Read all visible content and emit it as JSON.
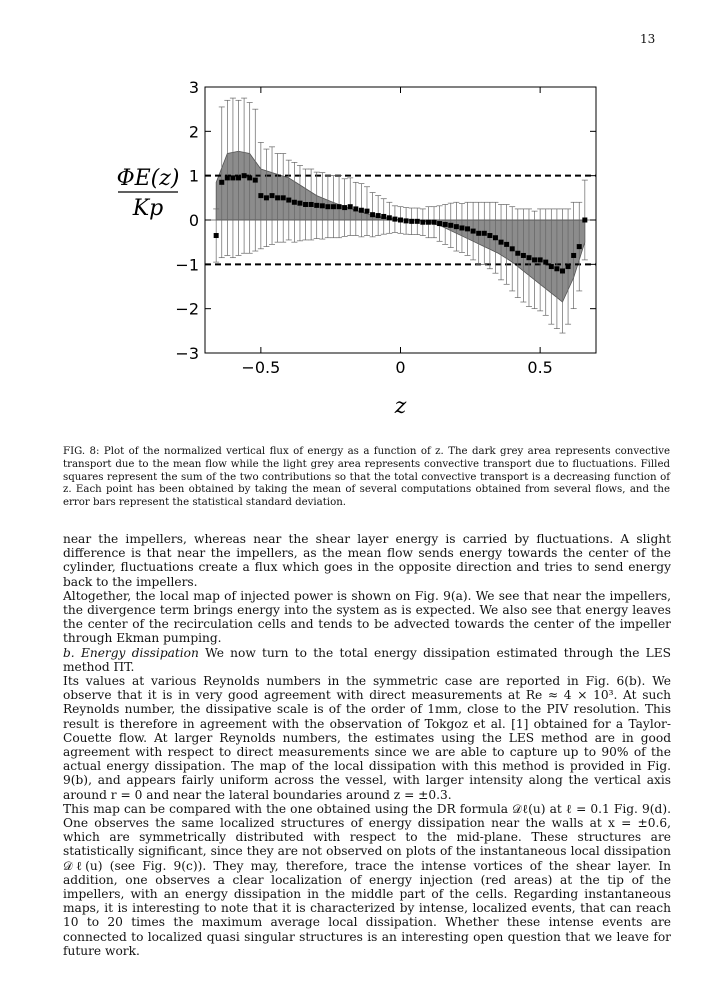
{
  "page_number": "13",
  "figure": {
    "ylabel_top": "ΦE(z)",
    "ylabel_bottom": "Kp",
    "xlabel": "z"
  },
  "caption": "FIG. 8: Plot of the normalized vertical flux of energy as a function of z. The dark grey area represents convective transport due to the mean flow while the light grey area represents convective transport due to fluctuations. Filled squares represent the sum of the two contributions so that the total convective transport is a decreasing function of z. Each point has been obtained by taking the mean of several computations obtained from several flows, and the error bars represent the statistical standard deviation.",
  "paragraphs": [
    "near the impellers, whereas near the shear layer energy is carried by fluctuations. A slight difference is that near the impellers, as the mean flow sends energy towards the center of the cylinder, fluctuations create a flux which goes in the opposite direction and tries to send energy back to the impellers.",
    "Altogether, the local map of injected power is shown on Fig. 9(a). We see that near the impellers, the divergence term brings energy into the system as is expected. We also see that energy leaves the center of the recirculation cells and tends to be advected towards the center of the impeller through Ekman pumping."
  ],
  "section": {
    "label": "b.",
    "title": "Energy dissipation",
    "text": "We now turn to the total energy dissipation estimated through the LES method ΠT."
  },
  "paragraphs2": [
    "Its values at various Reynolds numbers in the symmetric case are reported in Fig. 6(b). We observe that it is in very good agreement with direct measurements at Re ≈ 4 × 10³. At such Reynolds number, the dissipative scale is of the order of 1mm, close to the PIV resolution. This result is therefore in agreement with the observation of Tokgoz et al. [1] obtained for a Taylor-Couette flow. At larger Reynolds numbers, the estimates using the LES method are in good agreement with respect to direct measurements since we are able to capture up to 90% of the actual energy dissipation. The map of the local dissipation with this method is provided in Fig. 9(b), and appears fairly uniform across the vessel, with larger intensity along the vertical axis around r = 0 and near the lateral boundaries around z = ±0.3.",
    "This map can be compared with the one obtained using the DR formula 𝒟ℓ(u) at ℓ = 0.1 Fig. 9(d). One observes the same localized structures of energy dissipation near the walls at x = ±0.6, which are symmetrically distributed with respect to the mid-plane. These structures are statistically significant, since they are not observed on plots of the instantaneous local dissipation 𝒟ℓ(u) (see Fig. 9(c)). They may, therefore, trace the intense vortices of the shear layer. In addition, one observes a clear localization of energy injection (red areas) at the tip of the impellers, with an energy dissipation in the middle part of the cells. Regarding instantaneous maps, it is interesting to note that it is characterized by intense, localized events, that can reach 10 to 20 times the maximum average local dissipation. Whether these intense events are connected to localized quasi singular structures is an interesting open question that we leave for future work."
  ],
  "chart_data": {
    "type": "scatter",
    "xlabel": "z",
    "ylabel": "ΦE(z) / Kp",
    "xlim": [
      -0.7,
      0.7
    ],
    "ylim": [
      -3,
      3
    ],
    "xticks": [
      "−0.5",
      "0",
      "0.5"
    ],
    "xtick_values": [
      -0.5,
      0,
      0.5
    ],
    "yticks": [
      "−3",
      "−2",
      "−1",
      "0",
      "1",
      "2",
      "3"
    ],
    "ytick_values": [
      -3,
      -2,
      -1,
      0,
      1,
      2,
      3
    ],
    "reference_lines": [
      1,
      -1
    ],
    "mean_flow_area": {
      "x": [
        -0.66,
        -0.62,
        -0.58,
        -0.54,
        -0.5,
        -0.45,
        -0.4,
        -0.35,
        -0.3,
        -0.25,
        -0.2,
        -0.15,
        -0.1,
        -0.05,
        0.0,
        0.05,
        0.1,
        0.15,
        0.2,
        0.25,
        0.3,
        0.35,
        0.4,
        0.45,
        0.5,
        0.55,
        0.58,
        0.62,
        0.66
      ],
      "y": [
        0.85,
        1.5,
        1.55,
        1.5,
        1.15,
        1.05,
        0.95,
        0.75,
        0.55,
        0.42,
        0.3,
        0.2,
        0.1,
        0.05,
        0.0,
        0.0,
        -0.05,
        -0.15,
        -0.3,
        -0.45,
        -0.6,
        -0.75,
        -0.95,
        -1.2,
        -1.45,
        -1.7,
        -1.85,
        -1.3,
        -0.5
      ]
    },
    "total": {
      "x": [
        -0.66,
        -0.64,
        -0.62,
        -0.6,
        -0.58,
        -0.56,
        -0.54,
        -0.52,
        -0.5,
        -0.48,
        -0.46,
        -0.44,
        -0.42,
        -0.4,
        -0.38,
        -0.36,
        -0.34,
        -0.32,
        -0.3,
        -0.28,
        -0.26,
        -0.24,
        -0.22,
        -0.2,
        -0.18,
        -0.16,
        -0.14,
        -0.12,
        -0.1,
        -0.08,
        -0.06,
        -0.04,
        -0.02,
        0.0,
        0.02,
        0.04,
        0.06,
        0.08,
        0.1,
        0.12,
        0.14,
        0.16,
        0.18,
        0.2,
        0.22,
        0.24,
        0.26,
        0.28,
        0.3,
        0.32,
        0.34,
        0.36,
        0.38,
        0.4,
        0.42,
        0.44,
        0.46,
        0.48,
        0.5,
        0.52,
        0.54,
        0.56,
        0.58,
        0.6,
        0.62,
        0.64,
        0.66
      ],
      "y": [
        -0.35,
        0.85,
        0.95,
        0.95,
        0.95,
        1.0,
        0.95,
        0.9,
        0.55,
        0.5,
        0.55,
        0.5,
        0.5,
        0.45,
        0.4,
        0.38,
        0.35,
        0.35,
        0.33,
        0.32,
        0.3,
        0.3,
        0.3,
        0.28,
        0.3,
        0.25,
        0.22,
        0.2,
        0.12,
        0.1,
        0.08,
        0.05,
        0.02,
        0.0,
        -0.02,
        -0.03,
        -0.03,
        -0.05,
        -0.05,
        -0.05,
        -0.08,
        -0.1,
        -0.12,
        -0.15,
        -0.18,
        -0.2,
        -0.25,
        -0.3,
        -0.3,
        -0.35,
        -0.4,
        -0.5,
        -0.55,
        -0.65,
        -0.75,
        -0.8,
        -0.85,
        -0.9,
        -0.9,
        -0.95,
        -1.05,
        -1.1,
        -1.15,
        -1.05,
        -0.8,
        -0.6,
        0.0
      ],
      "error": [
        0.6,
        1.7,
        1.75,
        1.8,
        1.75,
        1.75,
        1.7,
        1.6,
        1.2,
        1.1,
        1.1,
        1.0,
        1.0,
        0.9,
        0.9,
        0.85,
        0.8,
        0.8,
        0.75,
        0.75,
        0.7,
        0.7,
        0.7,
        0.65,
        0.65,
        0.6,
        0.6,
        0.55,
        0.5,
        0.45,
        0.4,
        0.35,
        0.3,
        0.3,
        0.3,
        0.3,
        0.3,
        0.3,
        0.35,
        0.35,
        0.4,
        0.45,
        0.5,
        0.55,
        0.55,
        0.6,
        0.65,
        0.7,
        0.7,
        0.75,
        0.8,
        0.85,
        0.9,
        0.95,
        1.0,
        1.05,
        1.1,
        1.1,
        1.15,
        1.2,
        1.3,
        1.35,
        1.4,
        1.3,
        1.2,
        1.0,
        0.9
      ]
    },
    "grid": false
  }
}
